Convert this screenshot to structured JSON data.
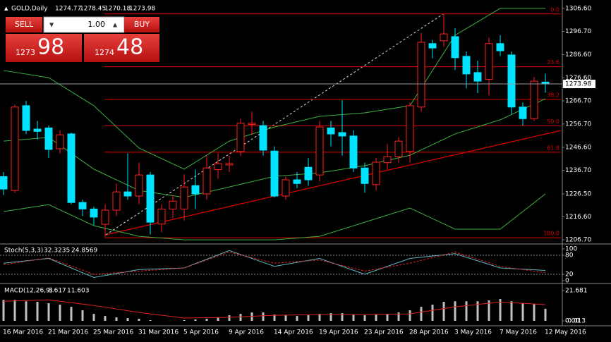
{
  "header": {
    "symbol": "GOLD,Daily"
  },
  "trade_panel": {
    "sell": "SELL",
    "lots": "1.00",
    "buy": "BUY",
    "bid_big": "1273",
    "bid_small": "98",
    "ask_big": "1274",
    "ask_small": "48"
  },
  "chart_data": [
    {
      "type": "candlestick",
      "categories": [
        "16 Mar 2016",
        null,
        null,
        null,
        "21 Mar 2016",
        null,
        null,
        null,
        "25 Mar 2016",
        null,
        null,
        null,
        "31 Mar 2016",
        null,
        null,
        null,
        "5 Apr 2016",
        null,
        null,
        null,
        "9 Apr 2016",
        null,
        null,
        null,
        "14 Apr 2016",
        null,
        null,
        null,
        "19 Apr 2016",
        null,
        null,
        null,
        "23 Apr 2016",
        null,
        null,
        null,
        "28 Apr 2016",
        null,
        null,
        null,
        "3 May 2016",
        null,
        null,
        null,
        "7 May 2016",
        null,
        null,
        null,
        "12 May 2016"
      ],
      "open": [
        1234,
        1228,
        1264.6,
        1254.5,
        1255,
        1246,
        1252.4,
        1222.8,
        1220,
        1213.4,
        1219.5,
        1227.4,
        1225.6,
        1234.7,
        1213.5,
        1220,
        1220,
        1230.1,
        1226.5,
        1237,
        1239,
        1244.8,
        1256.5,
        1256,
        1245,
        1225.6,
        1232.6,
        1238,
        1234.7,
        1255,
        1253,
        1251.5,
        1237.7,
        1230.5,
        1240,
        1242.6,
        1244.8,
        1264,
        1291.4,
        1292.6,
        1294.4,
        1285.9,
        1278.9,
        1276,
        1291.4,
        1286.5,
        1264,
        1259,
        1274.77
      ],
      "high": [
        1236,
        1265,
        1266.7,
        1258,
        1256,
        1254,
        1253,
        1224,
        1221,
        1222,
        1231,
        1244,
        1240,
        1236,
        1222,
        1226,
        1235,
        1237,
        1243,
        1244,
        1243,
        1259,
        1262,
        1258,
        1247,
        1234,
        1236,
        1242,
        1258,
        1258,
        1267,
        1254,
        1240,
        1242,
        1248,
        1251,
        1266,
        1296,
        1293,
        1304,
        1298,
        1288,
        1284,
        1294,
        1295,
        1288,
        1266,
        1277,
        1278.45
      ],
      "low": [
        1226,
        1227,
        1252.4,
        1250,
        1242,
        1244,
        1222,
        1217,
        1213,
        1208,
        1217,
        1224,
        1222,
        1209,
        1210,
        1216,
        1215,
        1220,
        1224,
        1233,
        1236,
        1243,
        1252,
        1243,
        1225,
        1224,
        1229,
        1230,
        1232,
        1247,
        1243,
        1236,
        1227,
        1228,
        1237,
        1240,
        1240,
        1262,
        1285,
        1290,
        1280,
        1272,
        1270,
        1269,
        1286,
        1261,
        1256,
        1258,
        1270.18
      ],
      "close": [
        1228.6,
        1264,
        1253.9,
        1253.5,
        1245.7,
        1252,
        1222.8,
        1220,
        1216.5,
        1219.5,
        1227.4,
        1225.6,
        1234.7,
        1214.3,
        1220,
        1223.4,
        1229.5,
        1226.5,
        1237.7,
        1239.6,
        1239.6,
        1257,
        1257,
        1245.4,
        1225.6,
        1232.6,
        1231,
        1232.6,
        1255.4,
        1252.4,
        1251.5,
        1237.7,
        1231,
        1240.2,
        1242.6,
        1249.3,
        1264.6,
        1292,
        1289.5,
        1295.6,
        1285.3,
        1278.3,
        1275.2,
        1291.4,
        1288.3,
        1264,
        1259,
        1275.2,
        1273.98
      ],
      "up_color": "#ff2020",
      "down_color": "#00e5ff",
      "ylim": [
        1205.2,
        1308.7
      ],
      "yticks": [
        {
          "value": 1306.6,
          "label": "1306.60"
        },
        {
          "value": 1296.7,
          "label": "1296.70"
        },
        {
          "value": 1286.6,
          "label": "1286.60"
        },
        {
          "value": 1276.6,
          "label": "1276.60"
        },
        {
          "value": 1266.7,
          "label": "1266.70"
        },
        {
          "value": 1256.7,
          "label": "1256.70"
        },
        {
          "value": 1246.6,
          "label": "1246.60"
        },
        {
          "value": 1236.7,
          "label": "1236.70"
        },
        {
          "value": 1226.5,
          "label": "1226.50"
        },
        {
          "value": 1216.6,
          "label": "1216.60"
        },
        {
          "value": 1206.7,
          "label": "1206.70"
        }
      ],
      "fibo": [
        {
          "label": "0.0",
          "value": 1304.2
        },
        {
          "label": "23.6",
          "value": 1281.4
        },
        {
          "label": "38.2",
          "value": 1267.3
        },
        {
          "label": "50.0",
          "value": 1255.9
        },
        {
          "label": "61.8",
          "value": 1244.5
        },
        {
          "label": "100.0",
          "value": 1207.6
        }
      ],
      "fibo_color": "#e00000",
      "bands": [
        {
          "color": "#3cb043",
          "x": [
            "16 Mar 2016",
            "21 Mar 2016",
            "25 Mar 2016",
            "31 Mar 2016",
            "5 Apr 2016",
            "9 Apr 2016",
            "14 Apr 2016",
            "19 Apr 2016",
            "23 Apr 2016",
            "28 Apr 2016",
            "3 May 2016",
            "7 May 2016",
            "12 May 2016"
          ],
          "values": [
            1279.8,
            1276.7,
            1264.6,
            1246.3,
            1237.2,
            1249.3,
            1255.4,
            1260.0,
            1261.5,
            1264.6,
            1295.0,
            1306.6,
            1306.6
          ]
        },
        {
          "color": "#3cb043",
          "x": [
            "16 Mar 2016",
            "21 Mar 2016",
            "25 Mar 2016",
            "31 Mar 2016",
            "5 Apr 2016",
            "9 Apr 2016",
            "14 Apr 2016",
            "19 Apr 2016",
            "23 Apr 2016",
            "28 Apr 2016",
            "3 May 2016",
            "7 May 2016",
            "12 May 2016"
          ],
          "values": [
            1249.3,
            1250.9,
            1237.2,
            1228.0,
            1225.0,
            1229.5,
            1234.1,
            1235.6,
            1238.7,
            1243.2,
            1252.4,
            1258.5,
            1267.6
          ]
        },
        {
          "color": "#3cb043",
          "x": [
            "16 Mar 2016",
            "21 Mar 2016",
            "25 Mar 2016",
            "31 Mar 2016",
            "5 Apr 2016",
            "9 Apr 2016",
            "14 Apr 2016",
            "19 Apr 2016",
            "23 Apr 2016",
            "28 Apr 2016",
            "3 May 2016",
            "7 May 2016",
            "12 May 2016"
          ],
          "values": [
            1218.9,
            1221.9,
            1212.8,
            1208.2,
            1206.7,
            1206.7,
            1206.7,
            1208.2,
            1214.3,
            1220.4,
            1211.3,
            1211.3,
            1226.5
          ]
        }
      ]
    },
    {
      "type": "line",
      "title": "Stoch(5,3,3)",
      "x": [
        "16 Mar 2016",
        "21 Mar 2016",
        "25 Mar 2016",
        "31 Mar 2016",
        "5 Apr 2016",
        "9 Apr 2016",
        "14 Apr 2016",
        "19 Apr 2016",
        "23 Apr 2016",
        "28 Apr 2016",
        "3 May 2016",
        "7 May 2016",
        "12 May 2016"
      ],
      "series": [
        {
          "color": "#5fb8c8",
          "values": [
            55,
            70,
            10,
            35,
            40,
            95,
            45,
            70,
            20,
            70,
            85,
            40,
            32.3235
          ]
        },
        {
          "color": "#e02020",
          "dashed": true,
          "values": [
            50,
            72,
            20,
            30,
            40,
            90,
            55,
            65,
            30,
            55,
            90,
            45,
            24.8569
          ]
        }
      ],
      "ylim": [
        -6.7,
        113.3
      ],
      "yticks": [
        100,
        80,
        20,
        0
      ],
      "levels": [
        80,
        20
      ]
    },
    {
      "type": "bar",
      "title": "MACD(12,26,9)",
      "values": [
        15,
        15,
        14,
        13.6,
        12.6,
        11.6,
        10,
        7.6,
        5,
        3.5,
        2.5,
        2,
        1.5,
        0.5,
        0,
        0,
        0.5,
        1,
        1.5,
        2.5,
        4,
        5,
        6,
        6,
        4.5,
        4,
        3.5,
        4,
        5,
        5.5,
        5.5,
        4.5,
        4,
        4.5,
        5,
        6,
        7.6,
        10,
        11.6,
        13.6,
        14,
        14,
        14,
        14.6,
        15.6,
        14,
        12.6,
        12,
        8.617
      ],
      "color": "#c0c0c0",
      "signal": {
        "color": "#e02020",
        "x": [
          "16 Mar 2016",
          "21 Mar 2016",
          "25 Mar 2016",
          "31 Mar 2016",
          "5 Apr 2016",
          "9 Apr 2016",
          "14 Apr 2016",
          "19 Apr 2016",
          "23 Apr 2016",
          "28 Apr 2016",
          "3 May 2016",
          "7 May 2016",
          "12 May 2016"
        ],
        "values": [
          14,
          15,
          11,
          6,
          2,
          2.5,
          4,
          4.5,
          4.5,
          5,
          10,
          13.5,
          11.603
        ]
      },
      "ylim": [
        -3.53,
        26.22
      ],
      "yticks": [
        21.681,
        {
          "value": 0,
          "label": "0.00"
        },
        {
          "value": -0.013,
          "label": "-0.013"
        }
      ]
    }
  ]
}
